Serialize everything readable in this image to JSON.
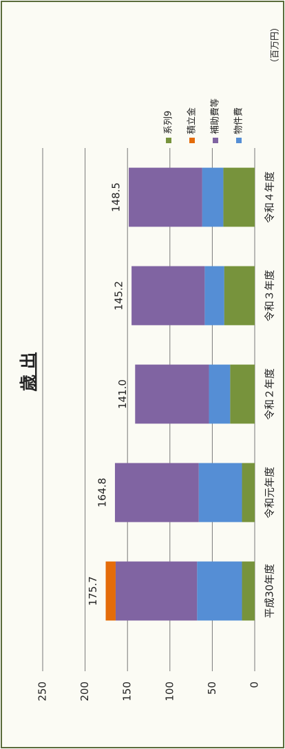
{
  "chart_data": {
    "type": "stacked_bar",
    "title": "歳 出",
    "unit_label": "（百万円）",
    "categories": [
      "平成30年度",
      "令和元年度",
      "令和２年度",
      "令和３年度",
      "令和４年度"
    ],
    "series": [
      {
        "name": "系列9",
        "color": "#77933c",
        "values": [
          15,
          15,
          29,
          36,
          37
        ]
      },
      {
        "name": "積立金",
        "color": "#e46c0a",
        "values": [
          11.7,
          0,
          0,
          0,
          0
        ]
      },
      {
        "name": "補助費等",
        "color": "#8064a2",
        "values": [
          96,
          98.8,
          87,
          86.2,
          86.5
        ]
      },
      {
        "name": "物件費",
        "color": "#558ed5",
        "values": [
          53,
          51,
          25,
          23,
          25
        ]
      }
    ],
    "totals": {
      "values": [
        175.7,
        164.8,
        141,
        145.2,
        148.5
      ],
      "value_labels": [
        "175.7",
        "164.8",
        "141.0",
        "145.2",
        "148.5"
      ]
    },
    "ylim": [
      0,
      250
    ],
    "yticks": [
      0,
      50,
      100,
      150,
      200,
      250
    ],
    "grid": true,
    "legend": "right"
  }
}
